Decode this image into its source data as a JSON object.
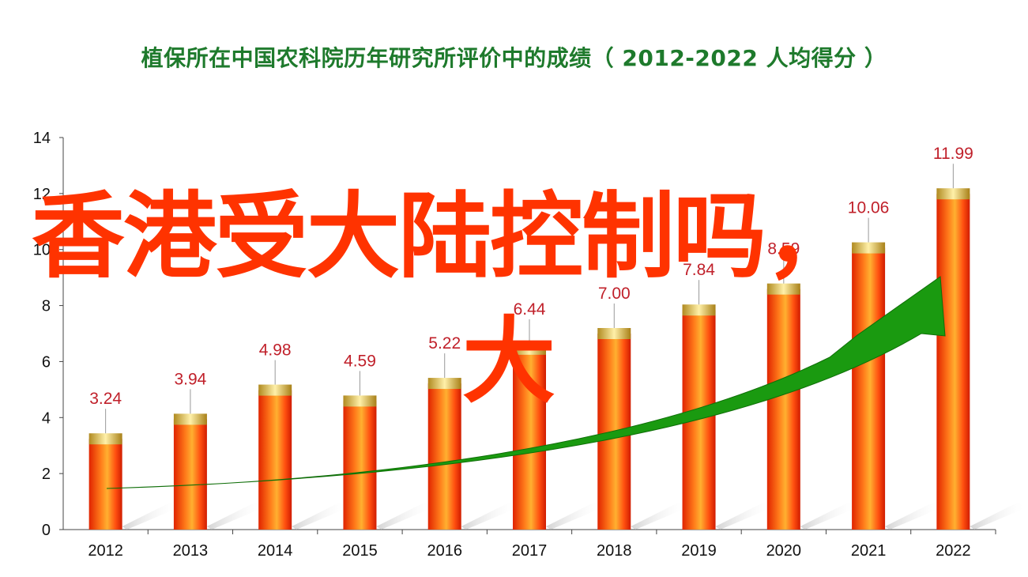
{
  "chart_data": {
    "type": "bar",
    "title": "植保所在中国农科院历年研究所评价中的成绩（ 2012-2022  人均得分 ）",
    "categories": [
      "2012",
      "2013",
      "2014",
      "2015",
      "2016",
      "2017",
      "2018",
      "2019",
      "2020",
      "2021",
      "2022"
    ],
    "values": [
      3.24,
      3.94,
      4.98,
      4.59,
      5.22,
      6.44,
      7.0,
      7.84,
      8.59,
      10.06,
      11.99
    ],
    "value_labels": [
      "3.24",
      "3.94",
      "4.98",
      "4.59",
      "5.22",
      "6.44",
      "7.00",
      "7.84",
      "8.59",
      "10.06",
      "11.99"
    ],
    "ylim": [
      0,
      14
    ],
    "yticks": [
      "0",
      "2",
      "4",
      "6",
      "8",
      "10",
      "12",
      "14"
    ],
    "xlabel": "",
    "ylabel": "",
    "grid": false,
    "trend_arrow": true,
    "colors": {
      "bar_body": "#ff4a10",
      "bar_cap": "#e8c850",
      "label": "#c0202a",
      "arrow": "#1a9a10",
      "title": "#1e7a2c"
    }
  },
  "overlay": {
    "line1": "香港受大陆控制吗，",
    "line2": "大"
  }
}
